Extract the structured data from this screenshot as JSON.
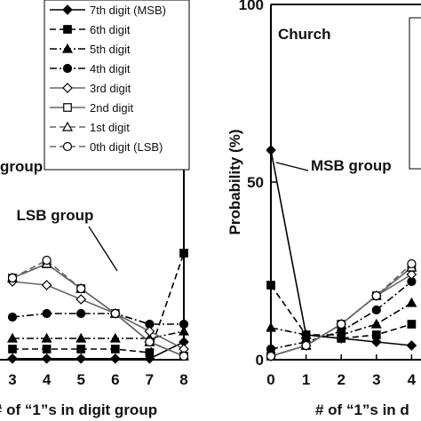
{
  "chart_data": [
    {
      "type": "line",
      "panel": "left",
      "xlabel": "# of “1”s in digit group",
      "ylabel": "",
      "x": [
        0,
        1,
        2,
        3,
        4,
        5,
        6,
        7,
        8
      ],
      "xlim": [
        0,
        8
      ],
      "ylim": [
        0,
        100
      ],
      "visible_x_ticks": [
        3,
        4,
        5,
        6,
        7,
        8
      ],
      "annotations": [
        "LSB group",
        "group"
      ],
      "legend_placement": "top-right",
      "series": [
        {
          "name": "7th digit (MSB)",
          "marker": "diamond",
          "fill": "filled",
          "dash": "solid",
          "values": [
            null,
            null,
            null,
            0.3,
            0.3,
            0.3,
            0.3,
            0.3,
            5
          ]
        },
        {
          "name": "6th digit",
          "marker": "square",
          "fill": "filled",
          "dash": "dash",
          "values": [
            null,
            null,
            null,
            3,
            3,
            3,
            3,
            2,
            30
          ]
        },
        {
          "name": "5th digit",
          "marker": "triangle",
          "fill": "filled",
          "dash": "dashdot",
          "values": [
            null,
            null,
            null,
            6,
            6,
            6,
            6,
            6,
            8
          ]
        },
        {
          "name": "4th digit",
          "marker": "circle",
          "fill": "filled",
          "dash": "dashdot",
          "values": [
            null,
            null,
            null,
            12,
            13,
            13,
            13,
            10,
            10
          ]
        },
        {
          "name": "3rd digit",
          "marker": "diamond",
          "fill": "open",
          "dash": "solid",
          "values": [
            null,
            null,
            null,
            22,
            21,
            17,
            13,
            8,
            3
          ]
        },
        {
          "name": "2nd digit",
          "marker": "square",
          "fill": "open",
          "dash": "solid",
          "values": [
            null,
            null,
            null,
            23,
            27,
            20,
            13,
            5,
            1
          ]
        },
        {
          "name": "1st digit",
          "marker": "triangle",
          "fill": "open",
          "dash": "dash",
          "values": [
            null,
            null,
            null,
            23,
            27,
            20,
            13,
            5,
            1
          ]
        },
        {
          "name": "0th digit (LSB)",
          "marker": "circle",
          "fill": "open",
          "dash": "dash",
          "values": [
            null,
            null,
            null,
            23,
            28,
            20,
            13,
            5,
            1
          ]
        }
      ]
    },
    {
      "type": "line",
      "panel": "right",
      "xlabel": "# of “1”s in d",
      "ylabel": "Probability (%)",
      "x": [
        0,
        1,
        2,
        3,
        4,
        5
      ],
      "xlim": [
        0,
        5
      ],
      "ylim": [
        0,
        100
      ],
      "x_ticks": [
        0,
        1,
        2,
        3,
        4
      ],
      "y_ticks": [
        0,
        50,
        100
      ],
      "title": "Church",
      "annotations": [
        "MSB group"
      ],
      "series": [
        {
          "name": "7th digit (MSB)",
          "marker": "diamond",
          "fill": "filled",
          "dash": "solid",
          "values": [
            59,
            7,
            6,
            5,
            4,
            null
          ]
        },
        {
          "name": "6th digit",
          "marker": "square",
          "fill": "filled",
          "dash": "dash",
          "values": [
            21,
            7,
            6,
            7,
            10,
            null
          ]
        },
        {
          "name": "5th digit",
          "marker": "triangle",
          "fill": "filled",
          "dash": "dashdot",
          "values": [
            9,
            7,
            7,
            10,
            16,
            null
          ]
        },
        {
          "name": "4th digit",
          "marker": "circle",
          "fill": "filled",
          "dash": "dashdot",
          "values": [
            3,
            5,
            8,
            14,
            22,
            null
          ]
        },
        {
          "name": "3rd digit",
          "marker": "diamond",
          "fill": "open",
          "dash": "solid",
          "values": [
            1,
            4,
            10,
            18,
            24,
            null
          ]
        },
        {
          "name": "2nd digit",
          "marker": "square",
          "fill": "open",
          "dash": "solid",
          "values": [
            1,
            4,
            10,
            18,
            26,
            null
          ]
        },
        {
          "name": "1st digit",
          "marker": "triangle",
          "fill": "open",
          "dash": "dash",
          "values": [
            1,
            4,
            10,
            18,
            26,
            null
          ]
        },
        {
          "name": "0th digit (LSB)",
          "marker": "circle",
          "fill": "open",
          "dash": "dash",
          "values": [
            1,
            4,
            10,
            18,
            27,
            null
          ]
        }
      ]
    }
  ]
}
